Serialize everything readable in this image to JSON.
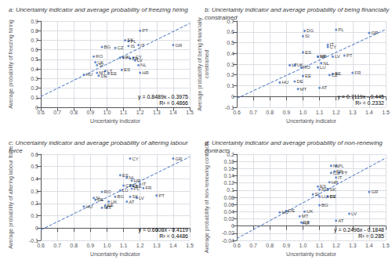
{
  "chart_data": [
    {
      "type": "scatter",
      "title": "a: Uncertainty indicator and average probability of freezing hiring",
      "xlabel": "Uncertainty indicator",
      "ylabel": "Average probability of freezing hiring",
      "xlim": [
        0.6,
        1.5
      ],
      "ylim": [
        0,
        0.9
      ],
      "xticks": [
        0.6,
        0.7,
        0.8,
        0.9,
        {
          "value": 1.0,
          "label": "1.0"
        },
        1.1,
        1.2,
        1.3,
        1.4,
        1.5
      ],
      "yticks": [
        0,
        0.1,
        0.2,
        0.3,
        0.4,
        0.5,
        0.6,
        0.7,
        0.8,
        0.9
      ],
      "grid": true,
      "annotations": [
        "y = 0.8489x - 0.3975",
        "R² = 0.4866"
      ],
      "series": [
        {
          "type": "scatter",
          "color": "#4472C4",
          "point_labels": [
            "HU",
            "MT",
            "DE",
            "LT",
            "EE",
            "UK",
            "SI",
            "RO",
            "BG",
            "LU",
            "AL",
            "CZ",
            "IS",
            "PL",
            "SK",
            "FR",
            "CY",
            "LV",
            "NL",
            "ES",
            "HR",
            "PT",
            "IT",
            "GR"
          ],
          "x": [
            0.86,
            0.94,
            0.95,
            0.99,
            1.01,
            0.93,
            0.94,
            0.92,
            0.97,
            1.08,
            1.1,
            1.05,
            1.13,
            1.13,
            1.11,
            1.14,
            1.16,
            1.17,
            1.19,
            1.09,
            1.2,
            1.2,
            1.19,
            1.4
          ],
          "values": [
            0.34,
            0.36,
            0.33,
            0.38,
            0.35,
            0.47,
            0.44,
            0.53,
            0.63,
            0.52,
            0.52,
            0.62,
            0.64,
            0.69,
            0.7,
            0.51,
            0.52,
            0.49,
            0.44,
            0.39,
            0.36,
            0.8,
            0.65,
            0.65
          ]
        },
        {
          "type": "line",
          "color": "#4472C4",
          "line_style": "dashed",
          "x": [
            0.6,
            1.5
          ],
          "values": [
            0.11184,
            0.87585
          ]
        }
      ]
    },
    {
      "type": "scatter",
      "title": "b: Uncertainty indicator and average probability of being financially constrained",
      "xlabel": "Uncertainty indicator",
      "ylabel": "Average probability of being financially\nconstrained",
      "xlim": [
        0.6,
        1.5
      ],
      "ylim": [
        -0.1,
        0.7
      ],
      "xticks": [
        0.6,
        0.7,
        0.8,
        0.9,
        {
          "value": 1.0,
          "label": "1.0"
        },
        1.1,
        1.2,
        1.3,
        1.4,
        1.5
      ],
      "yticks": [
        -0.1,
        0,
        0.1,
        0.2,
        0.3,
        0.4,
        0.5,
        0.6,
        0.7
      ],
      "grid": true,
      "annotations": [
        "y = 0.7119x - 0.445",
        "R² = 0.2332"
      ],
      "series": [
        {
          "type": "scatter",
          "color": "#4472C4",
          "point_labels": [
            "HU",
            "DE",
            "MT",
            "EE",
            "LT",
            "UK",
            "RO",
            "SI",
            "ES",
            "DG",
            "LU",
            "SK",
            "HR",
            "NL",
            "AT",
            "CY",
            "IT",
            "LV",
            "BE",
            "CZ",
            "PL",
            "PT",
            "FR",
            "GR"
          ],
          "x": [
            0.86,
            0.95,
            0.97,
            1.0,
            0.92,
            0.95,
            0.99,
            1.0,
            1.0,
            1.01,
            1.09,
            1.09,
            1.09,
            1.11,
            1.1,
            1.15,
            1.15,
            1.18,
            1.18,
            1.16,
            1.2,
            1.25,
            1.3,
            1.4
          ],
          "values": [
            0.13,
            0.14,
            0.07,
            0.19,
            0.29,
            0.29,
            0.27,
            0.56,
            0.41,
            0.61,
            0.27,
            0.37,
            0.37,
            0.31,
            0.08,
            0.46,
            0.48,
            0.37,
            0.21,
            0.2,
            0.62,
            0.38,
            0.22,
            0.59
          ]
        },
        {
          "type": "line",
          "color": "#4472C4",
          "line_style": "dashed",
          "x": [
            0.6,
            1.5
          ],
          "values": [
            -0.01786,
            0.62285
          ]
        }
      ]
    },
    {
      "type": "scatter",
      "title": "c: Uncertainty indicator and average probability of altering labour force",
      "xlabel": "Uncertainty indicator",
      "ylabel": "Average probability of altering labour force",
      "xlim": [
        0.6,
        1.5
      ],
      "ylim": [
        -0.1,
        0.6
      ],
      "xticks": [
        0.6,
        0.7,
        0.8,
        0.9,
        {
          "value": 1.0,
          "label": "1.0"
        },
        1.1,
        1.2,
        1.3,
        1.4,
        1.5
      ],
      "yticks": [
        -0.1,
        0,
        0.1,
        0.2,
        0.3,
        0.4,
        0.5,
        0.6
      ],
      "grid": true,
      "annotations": [
        "y = 0.6608x - 0.4119",
        "R² = 0.4486"
      ],
      "series": [
        {
          "type": "scatter",
          "color": "#4472C4",
          "point_labels": [
            "HU",
            "MT",
            "T",
            "EE",
            "DE",
            "SI",
            "UK",
            "RO",
            "BG",
            "SK",
            "LU",
            "PL",
            "AT",
            "LV",
            "PT",
            "ES",
            "NL",
            "HR",
            "IT",
            "EL",
            "BE",
            "FR",
            "CZ",
            "CY",
            "GR"
          ],
          "x": [
            0.86,
            0.97,
            1.0,
            0.99,
            0.93,
            0.92,
            1.01,
            0.97,
            1.05,
            1.14,
            1.08,
            1.15,
            1.12,
            1.18,
            1.3,
            1.08,
            1.12,
            1.15,
            1.2,
            1.14,
            1.16,
            1.22,
            1.1,
            1.14,
            1.4
          ],
          "values": [
            0.175,
            0.165,
            0.165,
            0.185,
            0.23,
            0.245,
            0.215,
            0.295,
            0.255,
            0.255,
            0.305,
            0.32,
            0.215,
            0.245,
            0.265,
            0.43,
            0.41,
            0.385,
            0.36,
            0.345,
            0.34,
            0.325,
            0.345,
            0.565,
            0.565
          ]
        },
        {
          "type": "line",
          "color": "#4472C4",
          "line_style": "dashed",
          "x": [
            0.6,
            1.5
          ],
          "values": [
            -0.01542,
            0.5793
          ]
        }
      ]
    },
    {
      "type": "scatter",
      "title": "d: Uncertainty indicator and average probability of non-renewing contracts",
      "xlabel": "Uncertainty indicator",
      "ylabel": "Average probability of non-renewing contracts",
      "xlim": [
        0.6,
        1.5
      ],
      "ylim": [
        -0.04,
        0.2
      ],
      "xticks": [
        0.6,
        0.7,
        0.8,
        0.9,
        {
          "value": 1.0,
          "label": "1.0"
        },
        1.1,
        1.2,
        1.3,
        1.4,
        1.5
      ],
      "yticks": [
        -0.04,
        -0.02,
        0,
        0.02,
        0.04,
        0.06,
        0.08,
        0.1,
        0.12,
        0.14,
        0.16,
        0.18,
        0.2
      ],
      "grid": true,
      "annotations": [
        "y = 0.2496x - 0.1848",
        "R² = 0.285"
      ],
      "series": [
        {
          "type": "scatter",
          "color": "#4472C4",
          "point_labels": [
            "HU",
            "DE",
            "MT",
            "EE",
            "LT",
            "UK",
            "SI",
            "ES",
            "RO",
            "BG",
            "LU",
            "CY",
            "BE",
            "SK",
            "HR",
            "CZ",
            "IT",
            "NL",
            "PL",
            "FR",
            "PT",
            "LV",
            "AT",
            "GR"
          ],
          "x": [
            0.86,
            0.9,
            0.98,
            0.99,
            1.0,
            1.01,
            1.06,
            1.09,
            1.1,
            1.1,
            1.1,
            1.15,
            1.15,
            1.15,
            1.16,
            1.17,
            1.2,
            1.17,
            1.2,
            1.19,
            1.22,
            1.28,
            1.2,
            1.4
          ],
          "values": [
            0.038,
            0.042,
            0.027,
            0.01,
            0.008,
            0.04,
            0.088,
            0.11,
            0.102,
            0.058,
            0.082,
            0.082,
            0.082,
            0.102,
            0.122,
            0.148,
            0.135,
            0.168,
            0.168,
            0.152,
            0.148,
            0.034,
            0.015,
            0.095
          ]
        },
        {
          "type": "line",
          "color": "#4472C4",
          "line_style": "dashed",
          "x": [
            0.6,
            1.5
          ],
          "values": [
            -0.03504,
            0.1896
          ]
        }
      ]
    }
  ]
}
